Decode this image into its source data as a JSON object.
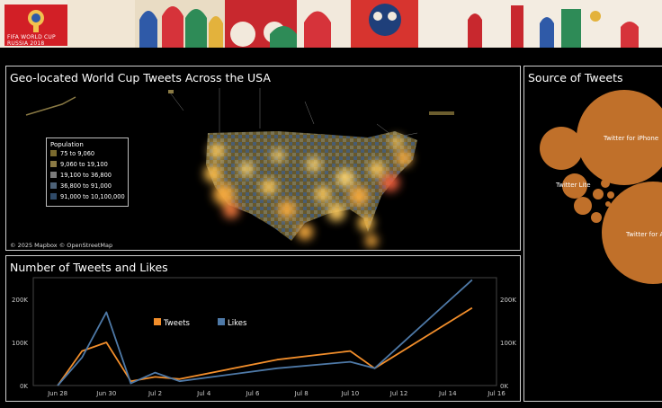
{
  "banner": {
    "logo_line1": "FIFA WORLD CUP",
    "logo_line2": "RUSSIA 2018"
  },
  "map_panel": {
    "title": "Geo-located World Cup Tweets Across the USA",
    "attribution": "© 2025 Mapbox  © OpenStreetMap",
    "legend": {
      "title": "Population",
      "items": [
        {
          "label": "75 to 9,060",
          "color": "#7a6a2e"
        },
        {
          "label": "9,060 to 19,100",
          "color": "#8b7a44"
        },
        {
          "label": "19,100 to 36,800",
          "color": "#7c7c7c"
        },
        {
          "label": "36,800 to 91,000",
          "color": "#4d6278"
        },
        {
          "label": "91,000 to 10,100,000",
          "color": "#2f4a68"
        }
      ]
    }
  },
  "source_panel": {
    "title": "Source of Tweets",
    "bubble_labels": {
      "iphone": "Twitter for iPhone",
      "lite": "Twitter Lite",
      "android": "Twitter for A"
    }
  },
  "line_panel": {
    "title": "Number of Tweets and Likes"
  },
  "colors": {
    "tweets": "#f28e2b",
    "likes": "#4e79a7",
    "bubble": "#c0702a"
  },
  "chart_data": {
    "type": "line",
    "title": "Number of Tweets and Likes",
    "x_ticks": [
      "Jun 28",
      "Jun 30",
      "Jul 2",
      "Jul 4",
      "Jul 6",
      "Jul 8",
      "Jul 10",
      "Jul 12",
      "Jul 14",
      "Jul 16"
    ],
    "y_ticks": [
      "0K",
      "100K",
      "200K"
    ],
    "ylim": [
      0,
      250000
    ],
    "xlim": [
      "2018-06-27",
      "2018-07-16"
    ],
    "legend": [
      "Tweets",
      "Likes"
    ],
    "legend_position": "top-center",
    "series": [
      {
        "name": "Tweets",
        "points": [
          {
            "x": "2018-06-28",
            "y": 0
          },
          {
            "x": "2018-06-29",
            "y": 80000
          },
          {
            "x": "2018-06-30",
            "y": 100000
          },
          {
            "x": "2018-07-01",
            "y": 10000
          },
          {
            "x": "2018-07-02",
            "y": 20000
          },
          {
            "x": "2018-07-03",
            "y": 15000
          },
          {
            "x": "2018-07-07",
            "y": 60000
          },
          {
            "x": "2018-07-10",
            "y": 80000
          },
          {
            "x": "2018-07-11",
            "y": 40000
          },
          {
            "x": "2018-07-15",
            "y": 180000
          }
        ]
      },
      {
        "name": "Likes",
        "points": [
          {
            "x": "2018-06-28",
            "y": 0
          },
          {
            "x": "2018-06-29",
            "y": 65000
          },
          {
            "x": "2018-06-30",
            "y": 170000
          },
          {
            "x": "2018-07-01",
            "y": 5000
          },
          {
            "x": "2018-07-02",
            "y": 30000
          },
          {
            "x": "2018-07-03",
            "y": 10000
          },
          {
            "x": "2018-07-07",
            "y": 40000
          },
          {
            "x": "2018-07-10",
            "y": 55000
          },
          {
            "x": "2018-07-11",
            "y": 40000
          },
          {
            "x": "2018-07-15",
            "y": 245000
          }
        ]
      }
    ]
  }
}
